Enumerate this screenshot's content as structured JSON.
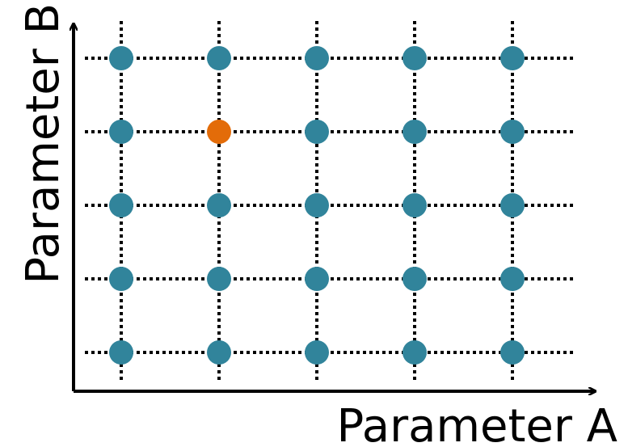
{
  "axes": {
    "x_label": "Parameter A",
    "y_label": "Parameter B"
  },
  "grid": {
    "columns": 5,
    "rows": 5,
    "highlighted": {
      "column": 2,
      "row": 2
    },
    "line_style": "dotted"
  },
  "colors": {
    "axis": "#000000",
    "grid_line": "#000000",
    "point": "#31849b",
    "highlight": "#e36c09"
  }
}
